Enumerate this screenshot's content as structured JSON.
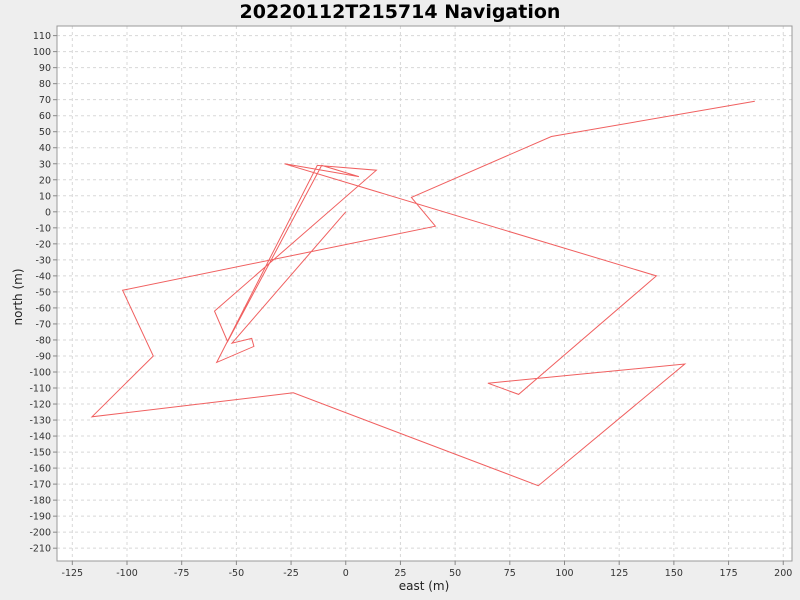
{
  "chart_data": {
    "type": "line",
    "title": "20220112T215714 Navigation",
    "xlabel": "east (m)",
    "ylabel": "north (m)",
    "xlim": [
      -132,
      204
    ],
    "ylim": [
      -218,
      116
    ],
    "xticks": [
      -125,
      -100,
      -75,
      -50,
      -25,
      0,
      25,
      50,
      75,
      100,
      125,
      150,
      175,
      200
    ],
    "yticks": [
      110,
      100,
      90,
      80,
      70,
      60,
      50,
      40,
      30,
      20,
      10,
      0,
      -10,
      -20,
      -30,
      -40,
      -50,
      -60,
      -70,
      -80,
      -90,
      -100,
      -110,
      -120,
      -130,
      -140,
      -150,
      -160,
      -170,
      -180,
      -190,
      -200,
      -210
    ],
    "grid": true,
    "legend": "none",
    "series": [
      {
        "color": "#f06060",
        "x": [
          0,
          -52,
          -43,
          -42,
          -59,
          -13,
          14,
          -60,
          -54,
          -11,
          6,
          -28,
          142,
          79,
          65,
          155,
          88,
          -24,
          -116,
          -88,
          -102,
          41,
          30,
          94,
          187
        ],
        "y": [
          0,
          -82,
          -79,
          -84,
          -94,
          29,
          26,
          -62,
          -81,
          29,
          22,
          30,
          -40,
          -114,
          -107,
          -95,
          -171,
          -113,
          -128,
          -90,
          -49,
          -9,
          9,
          47,
          69
        ]
      }
    ]
  }
}
